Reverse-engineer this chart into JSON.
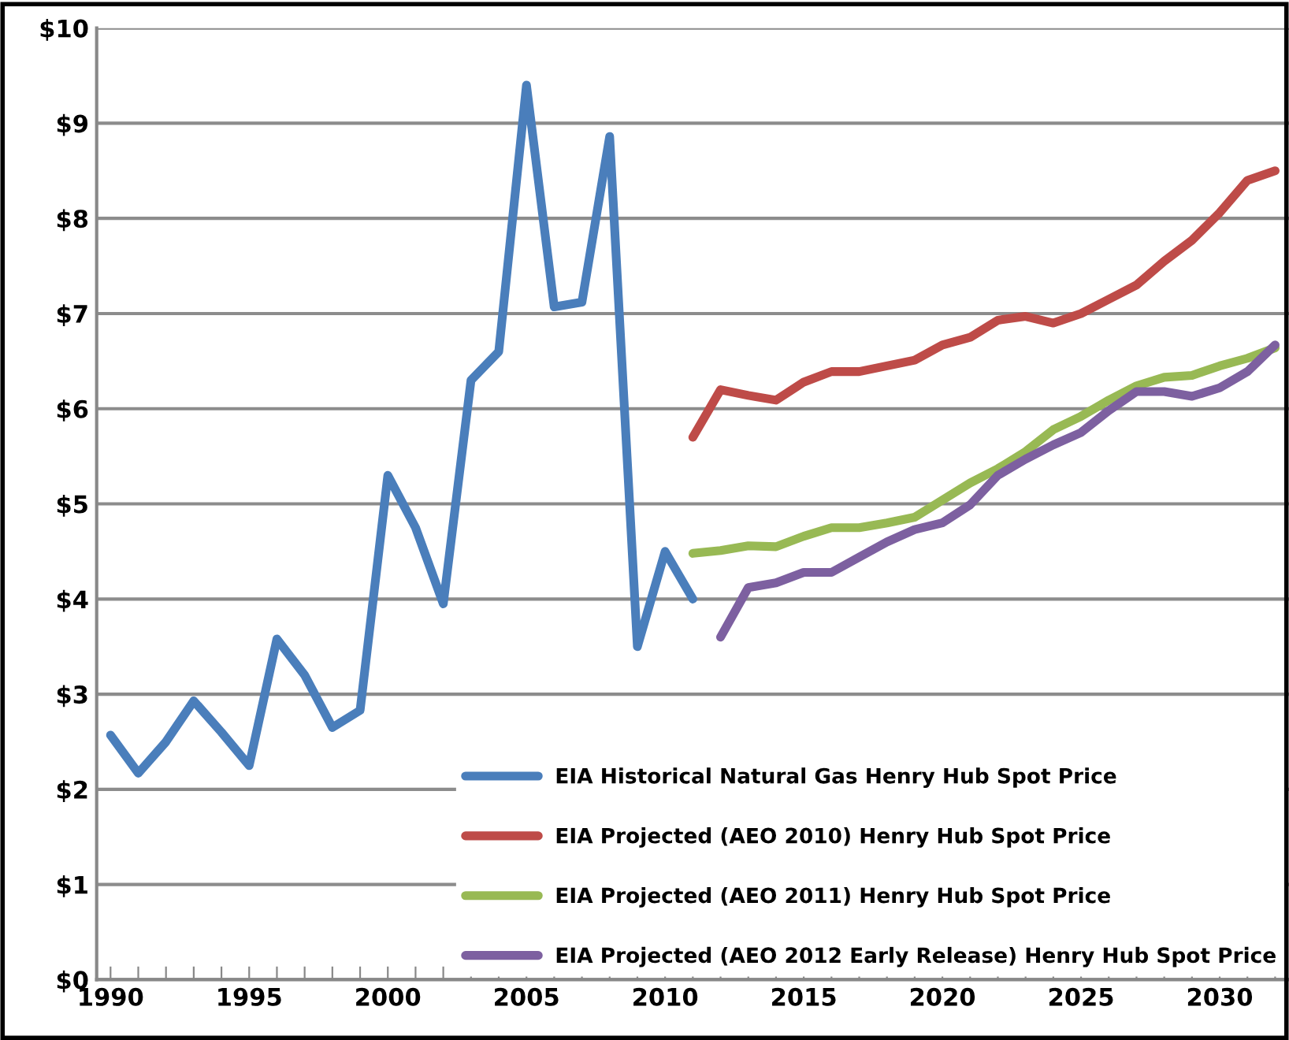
{
  "chart_data": {
    "type": "line",
    "xlim": [
      1989.5,
      2032.5
    ],
    "xticks": [
      1990,
      {
        "value": 1991,
        "label": null
      },
      {
        "value": 1992,
        "label": null
      },
      {
        "value": 1993,
        "label": null
      },
      {
        "value": 1994,
        "label": null
      },
      1995,
      {
        "value": 1996,
        "label": null
      },
      {
        "value": 1997,
        "label": null
      },
      {
        "value": 1998,
        "label": null
      },
      {
        "value": 1999,
        "label": null
      },
      2000,
      {
        "value": 2001,
        "label": null
      },
      {
        "value": 2002,
        "label": null
      },
      {
        "value": 2003,
        "label": null
      },
      {
        "value": 2004,
        "label": null
      },
      2005,
      {
        "value": 2006,
        "label": null
      },
      {
        "value": 2007,
        "label": null
      },
      {
        "value": 2008,
        "label": null
      },
      {
        "value": 2009,
        "label": null
      },
      2010,
      {
        "value": 2011,
        "label": null
      },
      {
        "value": 2012,
        "label": null
      },
      {
        "value": 2013,
        "label": null
      },
      {
        "value": 2014,
        "label": null
      },
      2015,
      {
        "value": 2016,
        "label": null
      },
      {
        "value": 2017,
        "label": null
      },
      {
        "value": 2018,
        "label": null
      },
      {
        "value": 2019,
        "label": null
      },
      2020,
      {
        "value": 2021,
        "label": null
      },
      {
        "value": 2022,
        "label": null
      },
      {
        "value": 2023,
        "label": null
      },
      {
        "value": 2024,
        "label": null
      },
      2025,
      {
        "value": 2026,
        "label": null
      },
      {
        "value": 2027,
        "label": null
      },
      {
        "value": 2028,
        "label": null
      },
      {
        "value": 2029,
        "label": null
      },
      2030,
      {
        "value": 2031,
        "label": null
      },
      {
        "value": 2032,
        "label": null
      }
    ],
    "ylim": [
      0,
      10
    ],
    "yticks": [
      {
        "value": 0,
        "label": "$0"
      },
      {
        "value": 1,
        "label": "$1"
      },
      {
        "value": 2,
        "label": "$2"
      },
      {
        "value": 3,
        "label": "$3"
      },
      {
        "value": 4,
        "label": "$4"
      },
      {
        "value": 5,
        "label": "$5"
      },
      {
        "value": 6,
        "label": "$6"
      },
      {
        "value": 7,
        "label": "$7"
      },
      {
        "value": 8,
        "label": "$8"
      },
      {
        "value": 9,
        "label": "$9"
      },
      {
        "value": 10,
        "label": "$10"
      }
    ],
    "grid": "y",
    "legend": "bottom right",
    "marker": "none",
    "line_style": "solid",
    "series": [
      {
        "name": "EIA Historical Natural Gas Henry Hub Spot Price",
        "color": "#4a7ebb",
        "x": [
          1990,
          1991,
          1992,
          1993,
          1994,
          1995,
          1996,
          1997,
          1998,
          1999,
          2000,
          2001,
          2002,
          2003,
          2004,
          2005,
          2006,
          2007,
          2008,
          2009,
          2010,
          2011
        ],
        "values": [
          2.57,
          2.17,
          2.5,
          2.93,
          2.6,
          2.25,
          3.58,
          3.2,
          2.65,
          2.83,
          5.3,
          4.75,
          3.95,
          6.3,
          6.6,
          9.4,
          7.07,
          7.12,
          8.86,
          3.5,
          4.5,
          4.0
        ]
      },
      {
        "name": "EIA Projected (AEO 2010) Henry Hub Spot Price",
        "color": "#be4b48",
        "x": [
          2011,
          2012,
          2013,
          2014,
          2015,
          2016,
          2017,
          2018,
          2019,
          2020,
          2021,
          2022,
          2023,
          2024,
          2025,
          2026,
          2027,
          2028,
          2029,
          2030,
          2031,
          2032
        ],
        "values": [
          5.7,
          6.2,
          6.14,
          6.09,
          6.28,
          6.39,
          6.39,
          6.45,
          6.51,
          6.67,
          6.75,
          6.93,
          6.97,
          6.9,
          7.0,
          7.15,
          7.3,
          7.55,
          7.77,
          8.06,
          8.4,
          8.5
        ]
      },
      {
        "name": "EIA Projected (AEO 2011) Henry Hub Spot Price",
        "color": "#98b954",
        "x": [
          2011,
          2012,
          2013,
          2014,
          2015,
          2016,
          2017,
          2018,
          2019,
          2020,
          2021,
          2022,
          2023,
          2024,
          2025,
          2026,
          2027,
          2028,
          2029,
          2030,
          2031,
          2032
        ],
        "values": [
          4.48,
          4.51,
          4.56,
          4.55,
          4.66,
          4.75,
          4.75,
          4.8,
          4.86,
          5.04,
          5.22,
          5.37,
          5.55,
          5.78,
          5.92,
          6.09,
          6.24,
          6.33,
          6.35,
          6.45,
          6.53,
          6.64
        ]
      },
      {
        "name": "EIA Projected (AEO 2012 Early Release) Henry Hub Spot Price",
        "color": "#7d60a0",
        "x": [
          2012,
          2013,
          2014,
          2015,
          2016,
          2017,
          2018,
          2019,
          2020,
          2021,
          2022,
          2023,
          2024,
          2025,
          2026,
          2027,
          2028,
          2029,
          2030,
          2031,
          2032
        ],
        "values": [
          3.6,
          4.12,
          4.17,
          4.28,
          4.28,
          4.44,
          4.6,
          4.73,
          4.8,
          4.99,
          5.3,
          5.47,
          5.62,
          5.75,
          5.98,
          6.18,
          6.18,
          6.13,
          6.22,
          6.39,
          6.67
        ]
      }
    ]
  }
}
